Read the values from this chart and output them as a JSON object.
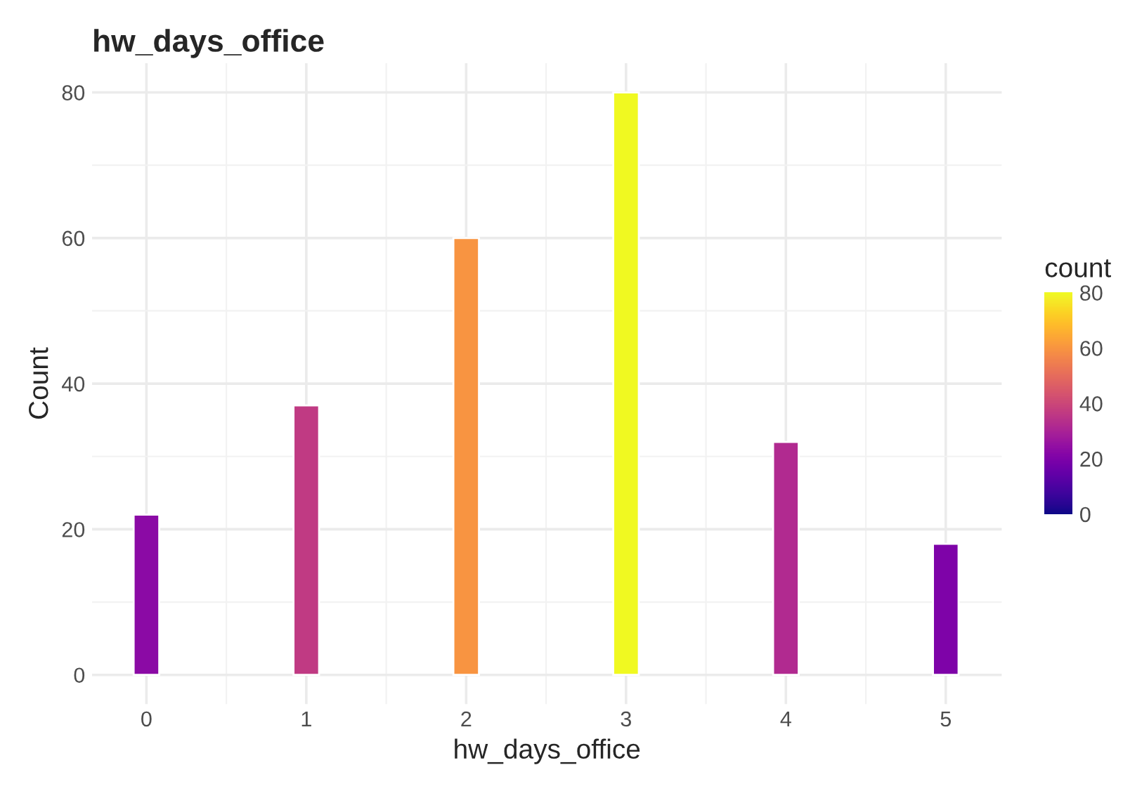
{
  "chart_data": {
    "type": "bar",
    "title": "hw_days_office",
    "xlabel": "hw_days_office",
    "ylabel": "Count",
    "clabel": "count",
    "x": [
      0,
      1,
      2,
      3,
      4,
      5
    ],
    "values": [
      22,
      37,
      60,
      80,
      32,
      18
    ],
    "colors": [
      "#8b0aa5",
      "#c03a83",
      "#f89441",
      "#f0f921",
      "#b12a90",
      "#7e03a8"
    ],
    "xlim": [
      -0.34,
      5.35
    ],
    "xticks": [
      0,
      1,
      2,
      3,
      4,
      5
    ],
    "ylim": [
      -4,
      84
    ],
    "yticks": [
      0,
      20,
      40,
      60,
      80
    ],
    "clim": [
      0,
      80
    ],
    "cticks": [
      0,
      20,
      40,
      60,
      80
    ],
    "grid": true
  }
}
